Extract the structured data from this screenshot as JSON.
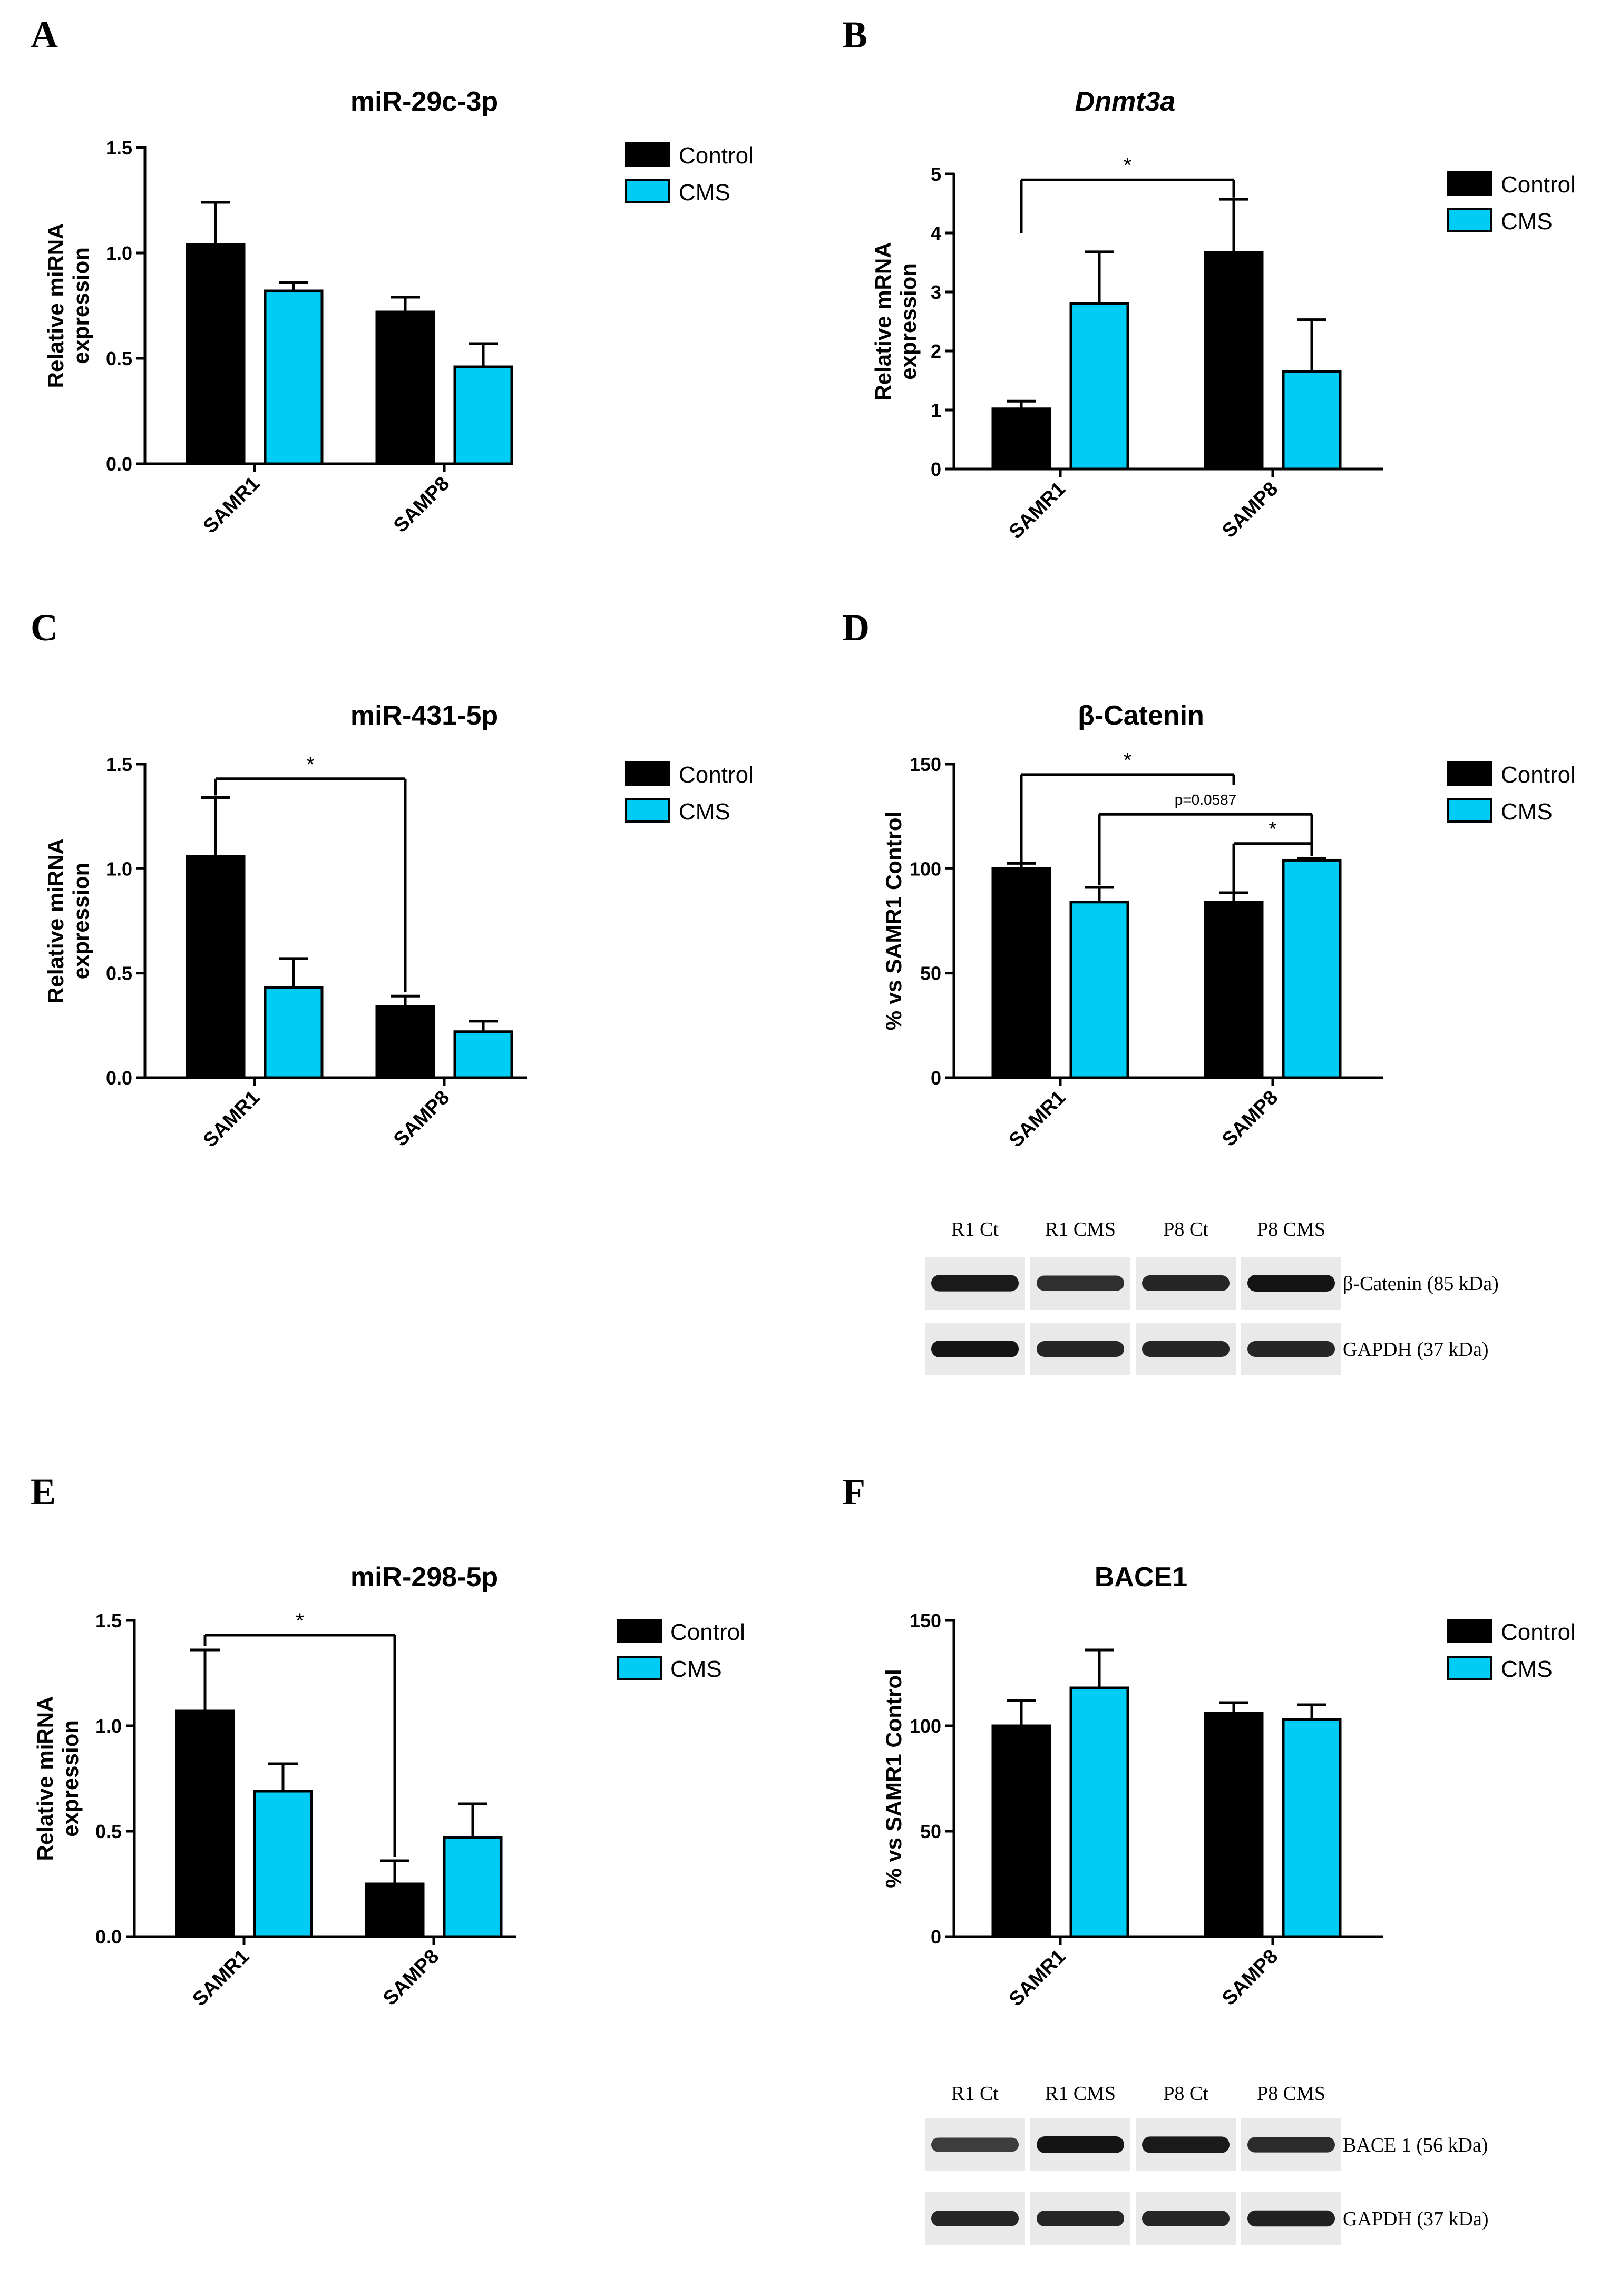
{
  "colors": {
    "control": "#000000",
    "cms": "#00CCF5",
    "axis": "#000000",
    "blot_bg": "#e9e9e9",
    "band": "#141414"
  },
  "legend": {
    "control": "Control",
    "cms": "CMS"
  },
  "chart_data": [
    {
      "id": "A",
      "letter": "A",
      "type": "bar",
      "title": "miR-29c-3p",
      "title_italic": false,
      "ylabel": [
        "Relative miRNA",
        "expression"
      ],
      "categories": [
        "SAMR1",
        "SAMP8"
      ],
      "ylim": [
        0,
        1.5
      ],
      "yticks": [
        0,
        0.5,
        1.0,
        1.5
      ],
      "yticklabels": [
        "0.0",
        "0.5",
        "1.0",
        "1.5"
      ],
      "series": [
        {
          "name": "Control",
          "values": [
            1.04,
            0.72
          ],
          "errors": [
            0.2,
            0.07
          ]
        },
        {
          "name": "CMS",
          "values": [
            0.82,
            0.46
          ],
          "errors": [
            0.04,
            0.11
          ]
        }
      ],
      "significance": []
    },
    {
      "id": "B",
      "letter": "B",
      "type": "bar",
      "title": "Dnmt3a",
      "title_italic": true,
      "ylabel": [
        "Relative mRNA",
        "expression"
      ],
      "categories": [
        "SAMR1",
        "SAMP8"
      ],
      "ylim": [
        0,
        5
      ],
      "yticks": [
        0,
        1,
        2,
        3,
        4,
        5
      ],
      "yticklabels": [
        "0",
        "1",
        "2",
        "3",
        "4",
        "5"
      ],
      "series": [
        {
          "name": "Control",
          "values": [
            1.02,
            3.67
          ],
          "errors": [
            0.13,
            0.9
          ]
        },
        {
          "name": "CMS",
          "values": [
            2.8,
            1.65
          ],
          "errors": [
            0.88,
            0.88
          ]
        }
      ],
      "significance": [
        {
          "from": [
            0,
            0
          ],
          "to": [
            1,
            0
          ],
          "top": 4.9,
          "label": "*",
          "drop_from": 4.0,
          "drop_to": 4.6
        }
      ]
    },
    {
      "id": "C",
      "letter": "C",
      "type": "bar",
      "title": "miR-431-5p",
      "title_italic": false,
      "ylabel": [
        "Relative miRNA",
        "expression"
      ],
      "categories": [
        "SAMR1",
        "SAMP8"
      ],
      "ylim": [
        0,
        1.5
      ],
      "yticks": [
        0,
        0.5,
        1.0,
        1.5
      ],
      "yticklabels": [
        "0.0",
        "0.5",
        "1.0",
        "1.5"
      ],
      "series": [
        {
          "name": "Control",
          "values": [
            1.06,
            0.34
          ],
          "errors": [
            0.28,
            0.05
          ]
        },
        {
          "name": "CMS",
          "values": [
            0.43,
            0.22
          ],
          "errors": [
            0.14,
            0.05
          ]
        }
      ],
      "significance": [
        {
          "from": [
            0,
            0
          ],
          "to": [
            1,
            0
          ],
          "top": 1.43,
          "label": "*",
          "drop_from": 1.35,
          "drop_to": 0.41
        }
      ]
    },
    {
      "id": "D",
      "letter": "D",
      "type": "bar",
      "title": "β-Catenin",
      "title_italic": false,
      "ylabel": [
        "% vs SAMR1 Control"
      ],
      "categories": [
        "SAMR1",
        "SAMP8"
      ],
      "ylim": [
        0,
        150
      ],
      "yticks": [
        0,
        50,
        100,
        150
      ],
      "yticklabels": [
        "0",
        "50",
        "100",
        "150"
      ],
      "series": [
        {
          "name": "Control",
          "values": [
            100,
            84
          ],
          "errors": [
            2.5,
            4.5
          ]
        },
        {
          "name": "CMS",
          "values": [
            84,
            104
          ],
          "errors": [
            7,
            1
          ]
        }
      ],
      "significance": [
        {
          "from": [
            0,
            0
          ],
          "to": [
            1,
            0
          ],
          "top": 145,
          "label": "*",
          "drop_from": 103,
          "drop_to": 140
        },
        {
          "from": [
            0,
            1
          ],
          "to": [
            1,
            1
          ],
          "top": 126,
          "label": "p=0.0587",
          "drop_from": 92,
          "drop_to": 106
        },
        {
          "from": [
            1,
            0
          ],
          "to": [
            1,
            1
          ],
          "top": 112,
          "label": "*",
          "drop_from": 89,
          "drop_to": 106
        }
      ],
      "blot": {
        "lanes": [
          "R1 Ct",
          "R1 CMS",
          "P8 Ct",
          "P8 CMS"
        ],
        "rows": [
          {
            "label": "β-Catenin (85 kDa)",
            "intensity": [
              0.95,
              0.78,
              0.85,
              1.0
            ]
          },
          {
            "label": "GAPDH (37 kDa)",
            "intensity": [
              1.0,
              0.85,
              0.85,
              0.85
            ]
          }
        ]
      }
    },
    {
      "id": "E",
      "letter": "E",
      "type": "bar",
      "title": "miR-298-5p",
      "title_italic": false,
      "ylabel": [
        "Relative miRNA",
        "expression"
      ],
      "categories": [
        "SAMR1",
        "SAMP8"
      ],
      "ylim": [
        0,
        1.5
      ],
      "yticks": [
        0,
        0.5,
        1.0,
        1.5
      ],
      "yticklabels": [
        "0.0",
        "0.5",
        "1.0",
        "1.5"
      ],
      "series": [
        {
          "name": "Control",
          "values": [
            1.07,
            0.25
          ],
          "errors": [
            0.29,
            0.11
          ]
        },
        {
          "name": "CMS",
          "values": [
            0.69,
            0.47
          ],
          "errors": [
            0.13,
            0.16
          ]
        }
      ],
      "significance": [
        {
          "from": [
            0,
            0
          ],
          "to": [
            1,
            0
          ],
          "top": 1.43,
          "label": "*",
          "drop_from": 1.38,
          "drop_to": 0.38
        }
      ]
    },
    {
      "id": "F",
      "letter": "F",
      "type": "bar",
      "title": "BACE1",
      "title_italic": false,
      "ylabel": [
        "% vs SAMR1 Control"
      ],
      "categories": [
        "SAMR1",
        "SAMP8"
      ],
      "ylim": [
        0,
        150
      ],
      "yticks": [
        0,
        50,
        100,
        150
      ],
      "yticklabels": [
        "0",
        "50",
        "100",
        "150"
      ],
      "series": [
        {
          "name": "Control",
          "values": [
            100,
            106
          ],
          "errors": [
            12,
            5
          ]
        },
        {
          "name": "CMS",
          "values": [
            118,
            103
          ],
          "errors": [
            18,
            7
          ]
        }
      ],
      "significance": [],
      "blot": {
        "lanes": [
          "R1 Ct",
          "R1 CMS",
          "P8 Ct",
          "P8 CMS"
        ],
        "rows": [
          {
            "label": "BACE 1 (56 kDa)",
            "intensity": [
              0.65,
              1.0,
              0.95,
              0.8
            ]
          },
          {
            "label": "GAPDH (37 kDa)",
            "intensity": [
              0.85,
              0.85,
              0.85,
              0.9
            ]
          }
        ]
      }
    }
  ]
}
